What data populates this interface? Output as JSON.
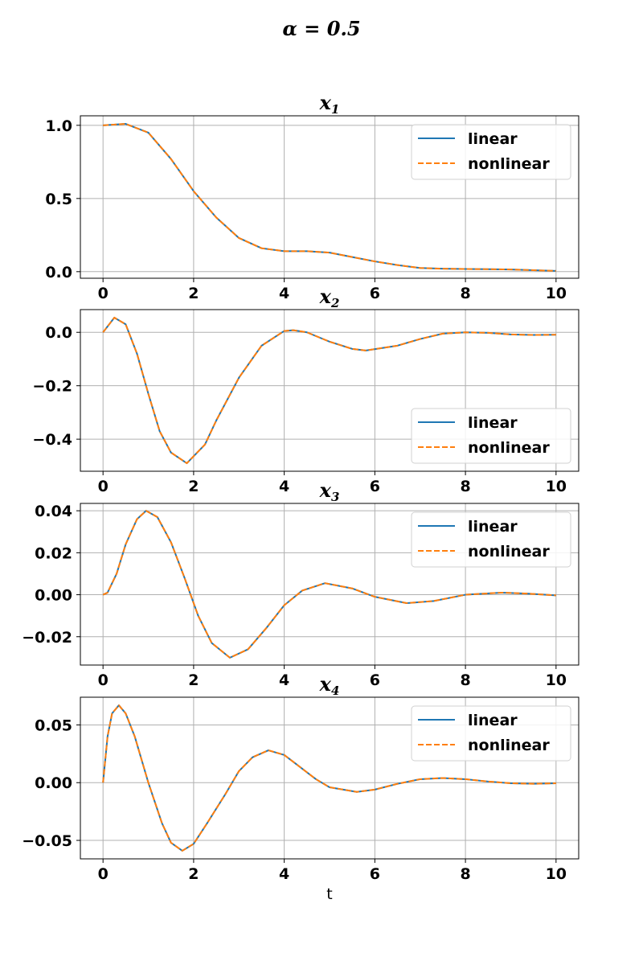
{
  "figure": {
    "suptitle": "α = 0.5",
    "xlabel": "t"
  },
  "colors": {
    "linear": "#1f77b4",
    "nonlinear": "#ff7f0e"
  },
  "chart_data": [
    {
      "type": "line",
      "title": "x1",
      "xlabel": "t",
      "xlim": [
        -0.5,
        10.5
      ],
      "ylim": [
        -0.045,
        1.065
      ],
      "xticks": [
        0,
        2,
        4,
        6,
        8,
        10
      ],
      "xtick_labels": [
        "0",
        "2",
        "4",
        "6",
        "8",
        "10"
      ],
      "yticks": [
        0.0,
        0.5,
        1.0
      ],
      "ytick_labels": [
        "0.0",
        "0.5",
        "1.0"
      ],
      "grid": true,
      "legend": "top-right",
      "x": [
        0,
        0.5,
        1,
        1.5,
        2,
        2.5,
        3,
        3.5,
        4,
        4.5,
        5,
        5.5,
        6,
        6.5,
        7,
        7.5,
        8,
        8.5,
        9,
        9.5,
        10
      ],
      "series": [
        {
          "name": "linear",
          "style": "solid",
          "values": [
            1.0,
            1.01,
            0.95,
            0.77,
            0.55,
            0.37,
            0.23,
            0.16,
            0.14,
            0.14,
            0.13,
            0.1,
            0.07,
            0.045,
            0.025,
            0.02,
            0.018,
            0.017,
            0.015,
            0.01,
            0.005
          ]
        },
        {
          "name": "nonlinear",
          "style": "dashed",
          "values": [
            1.0,
            1.01,
            0.95,
            0.77,
            0.55,
            0.37,
            0.23,
            0.16,
            0.14,
            0.14,
            0.13,
            0.1,
            0.07,
            0.045,
            0.025,
            0.02,
            0.018,
            0.017,
            0.015,
            0.01,
            0.005
          ]
        }
      ]
    },
    {
      "type": "line",
      "title": "x2",
      "xlabel": "t",
      "xlim": [
        -0.5,
        10.5
      ],
      "ylim": [
        -0.52,
        0.085
      ],
      "xticks": [
        0,
        2,
        4,
        6,
        8,
        10
      ],
      "xtick_labels": [
        "0",
        "2",
        "4",
        "6",
        "8",
        "10"
      ],
      "yticks": [
        -0.4,
        -0.2,
        0.0
      ],
      "ytick_labels": [
        "−0.4",
        "−0.2",
        "0.0"
      ],
      "grid": true,
      "legend": "bottom-right",
      "x": [
        0,
        0.25,
        0.5,
        0.75,
        1,
        1.25,
        1.5,
        1.85,
        2.25,
        2.5,
        3,
        3.5,
        4,
        4.2,
        4.5,
        5,
        5.5,
        5.8,
        6.5,
        7,
        7.5,
        8,
        8.5,
        9,
        9.5,
        10
      ],
      "series": [
        {
          "name": "linear",
          "style": "solid",
          "values": [
            0.0,
            0.055,
            0.03,
            -0.08,
            -0.23,
            -0.37,
            -0.45,
            -0.49,
            -0.42,
            -0.33,
            -0.17,
            -0.05,
            0.005,
            0.008,
            0.0,
            -0.035,
            -0.062,
            -0.068,
            -0.05,
            -0.025,
            -0.005,
            0.0,
            -0.002,
            -0.008,
            -0.01,
            -0.009
          ]
        },
        {
          "name": "nonlinear",
          "style": "dashed",
          "values": [
            0.0,
            0.055,
            0.03,
            -0.08,
            -0.23,
            -0.37,
            -0.45,
            -0.49,
            -0.42,
            -0.33,
            -0.17,
            -0.05,
            0.005,
            0.008,
            0.0,
            -0.035,
            -0.062,
            -0.068,
            -0.05,
            -0.025,
            -0.005,
            0.0,
            -0.002,
            -0.008,
            -0.01,
            -0.009
          ]
        }
      ]
    },
    {
      "type": "line",
      "title": "x3",
      "xlabel": "t",
      "xlim": [
        -0.5,
        10.5
      ],
      "ylim": [
        -0.0335,
        0.0435
      ],
      "xticks": [
        0,
        2,
        4,
        6,
        8,
        10
      ],
      "xtick_labels": [
        "0",
        "2",
        "4",
        "6",
        "8",
        "10"
      ],
      "yticks": [
        -0.02,
        0.0,
        0.02,
        0.04
      ],
      "ytick_labels": [
        "−0.02",
        "0.00",
        "0.02",
        "0.04"
      ],
      "grid": true,
      "legend": "top-right",
      "x": [
        0,
        0.1,
        0.3,
        0.5,
        0.75,
        0.95,
        1.2,
        1.5,
        1.8,
        2.1,
        2.4,
        2.8,
        3.2,
        3.6,
        4.0,
        4.4,
        4.9,
        5.5,
        6.0,
        6.7,
        7.3,
        8.0,
        8.8,
        9.4,
        10
      ],
      "series": [
        {
          "name": "linear",
          "style": "solid",
          "values": [
            0.0,
            0.001,
            0.01,
            0.024,
            0.036,
            0.04,
            0.037,
            0.025,
            0.008,
            -0.01,
            -0.023,
            -0.03,
            -0.026,
            -0.016,
            -0.005,
            0.002,
            0.0055,
            0.003,
            -0.001,
            -0.004,
            -0.003,
            0.0,
            0.001,
            0.0005,
            -0.0003
          ]
        },
        {
          "name": "nonlinear",
          "style": "dashed",
          "values": [
            0.0,
            0.001,
            0.01,
            0.024,
            0.036,
            0.04,
            0.037,
            0.025,
            0.008,
            -0.01,
            -0.023,
            -0.03,
            -0.026,
            -0.016,
            -0.005,
            0.002,
            0.0055,
            0.003,
            -0.001,
            -0.004,
            -0.003,
            0.0,
            0.001,
            0.0005,
            -0.0003
          ]
        }
      ]
    },
    {
      "type": "line",
      "title": "x4",
      "xlabel": "t",
      "xlim": [
        -0.5,
        10.5
      ],
      "ylim": [
        -0.066,
        0.074
      ],
      "xticks": [
        0,
        2,
        4,
        6,
        8,
        10
      ],
      "xtick_labels": [
        "0",
        "2",
        "4",
        "6",
        "8",
        "10"
      ],
      "yticks": [
        -0.05,
        0.0,
        0.05
      ],
      "ytick_labels": [
        "−0.05",
        "0.00",
        "0.05"
      ],
      "grid": true,
      "legend": "top-right",
      "x": [
        0,
        0.1,
        0.2,
        0.35,
        0.5,
        0.7,
        1.0,
        1.3,
        1.5,
        1.75,
        2.0,
        2.3,
        2.7,
        3.0,
        3.3,
        3.65,
        4.0,
        4.3,
        4.7,
        5.0,
        5.6,
        6.0,
        6.5,
        7.0,
        7.5,
        8.0,
        8.5,
        9.0,
        9.5,
        10
      ],
      "series": [
        {
          "name": "linear",
          "style": "solid",
          "values": [
            0.0,
            0.04,
            0.06,
            0.067,
            0.06,
            0.04,
            0.0,
            -0.035,
            -0.052,
            -0.059,
            -0.053,
            -0.035,
            -0.01,
            0.01,
            0.022,
            0.028,
            0.024,
            0.015,
            0.003,
            -0.004,
            -0.008,
            -0.006,
            -0.001,
            0.003,
            0.004,
            0.003,
            0.001,
            -0.0005,
            -0.001,
            -0.0005
          ]
        },
        {
          "name": "nonlinear",
          "style": "dashed",
          "values": [
            0.0,
            0.04,
            0.06,
            0.067,
            0.06,
            0.04,
            0.0,
            -0.035,
            -0.052,
            -0.059,
            -0.053,
            -0.035,
            -0.01,
            0.01,
            0.022,
            0.028,
            0.024,
            0.015,
            0.003,
            -0.004,
            -0.008,
            -0.006,
            -0.001,
            0.003,
            0.004,
            0.003,
            0.001,
            -0.0005,
            -0.001,
            -0.0005
          ]
        }
      ]
    }
  ]
}
